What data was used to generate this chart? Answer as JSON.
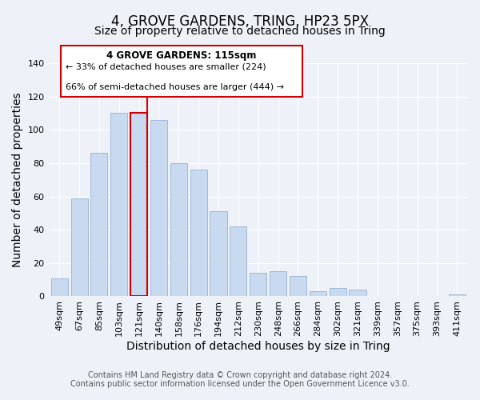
{
  "title": "4, GROVE GARDENS, TRING, HP23 5PX",
  "subtitle": "Size of property relative to detached houses in Tring",
  "xlabel": "Distribution of detached houses by size in Tring",
  "ylabel": "Number of detached properties",
  "categories": [
    "49sqm",
    "67sqm",
    "85sqm",
    "103sqm",
    "121sqm",
    "140sqm",
    "158sqm",
    "176sqm",
    "194sqm",
    "212sqm",
    "230sqm",
    "248sqm",
    "266sqm",
    "284sqm",
    "302sqm",
    "321sqm",
    "339sqm",
    "357sqm",
    "375sqm",
    "393sqm",
    "411sqm"
  ],
  "values": [
    11,
    59,
    86,
    110,
    110,
    106,
    80,
    76,
    51,
    42,
    14,
    15,
    12,
    3,
    5,
    4,
    0,
    0,
    0,
    0,
    1
  ],
  "bar_color": "#c8d9f0",
  "bar_edge_color": "#a0b8d8",
  "highlight_bar_index": 4,
  "highlight_bar_edge_color": "#cc0000",
  "vline_color": "#cc0000",
  "ylim": [
    0,
    140
  ],
  "yticks": [
    0,
    20,
    40,
    60,
    80,
    100,
    120,
    140
  ],
  "annotation_box_text_line1": "4 GROVE GARDENS: 115sqm",
  "annotation_box_text_line2": "← 33% of detached houses are smaller (224)",
  "annotation_box_text_line3": "66% of semi-detached houses are larger (444) →",
  "footer_line1": "Contains HM Land Registry data © Crown copyright and database right 2024.",
  "footer_line2": "Contains public sector information licensed under the Open Government Licence v3.0.",
  "background_color": "#eef2f8",
  "title_fontsize": 12,
  "subtitle_fontsize": 10,
  "axis_label_fontsize": 10,
  "tick_fontsize": 8,
  "footer_fontsize": 7
}
